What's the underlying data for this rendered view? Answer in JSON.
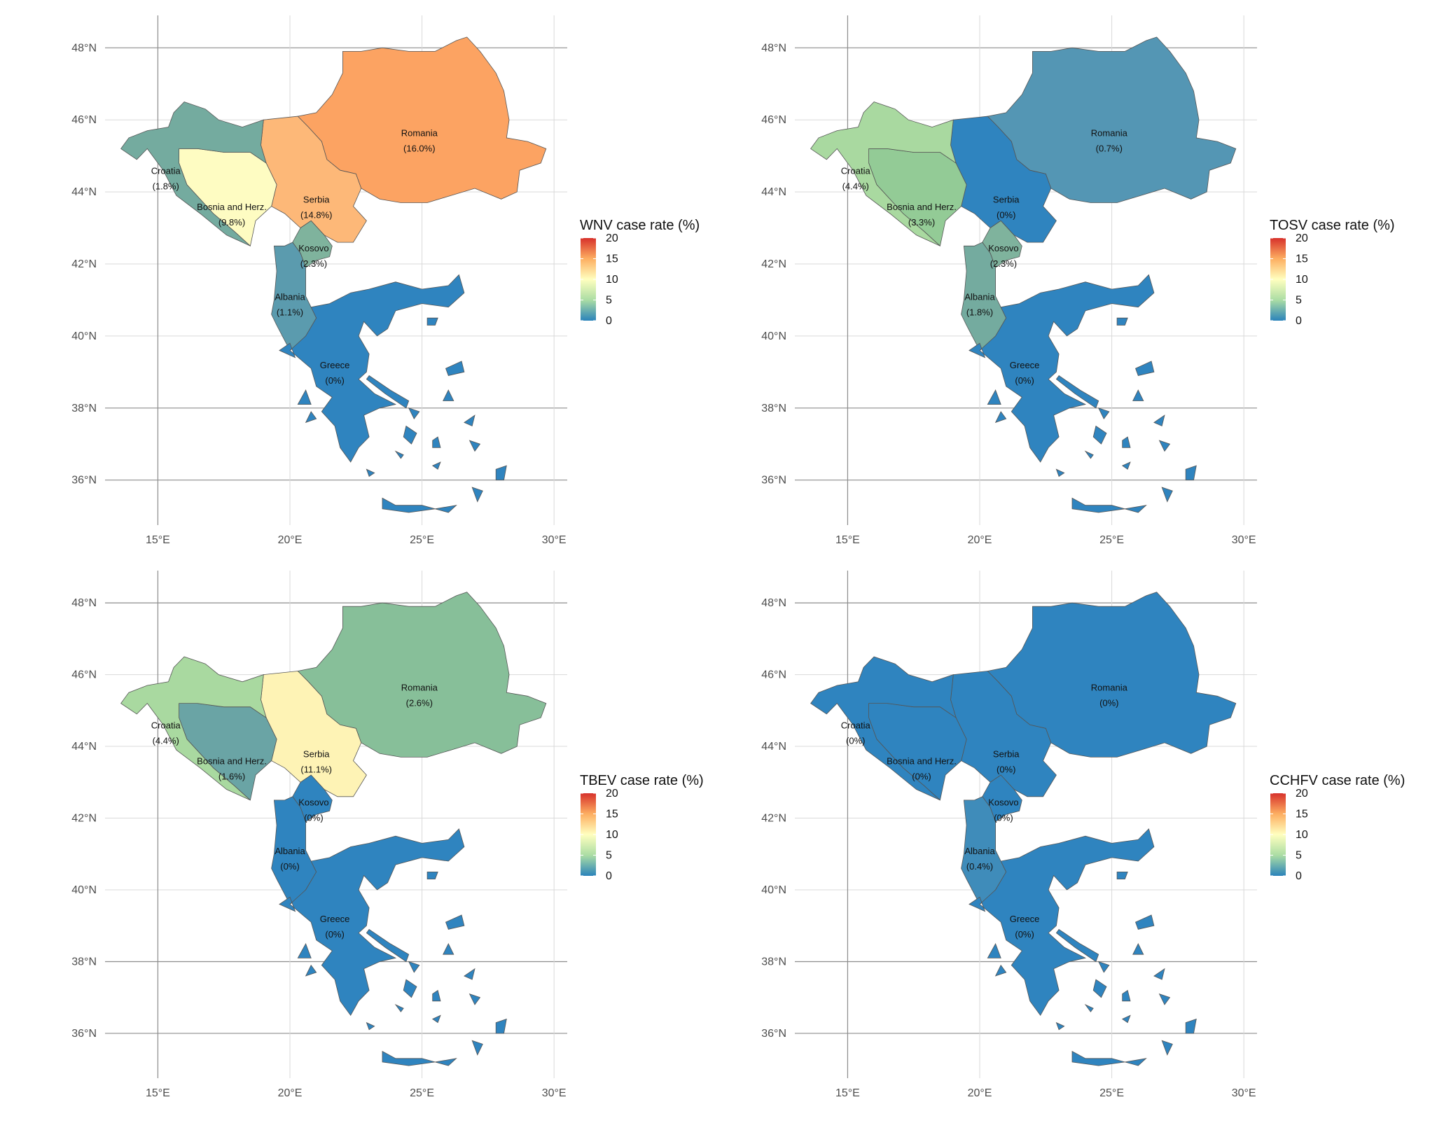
{
  "axes": {
    "lat_ticks": [
      "48°N",
      "46°N",
      "44°N",
      "42°N",
      "40°N",
      "38°N",
      "36°N"
    ],
    "lat_values": [
      48,
      46,
      44,
      42,
      40,
      38,
      36
    ],
    "lon_ticks": [
      "15°E",
      "20°E",
      "25°E",
      "30°E"
    ],
    "lon_values": [
      15,
      20,
      25,
      30
    ]
  },
  "legend": {
    "ticks": [
      "20",
      "15",
      "10",
      "5",
      "0"
    ],
    "scale_range": [
      0,
      20
    ],
    "colors": [
      "#d7312b",
      "#fdae61",
      "#ffffbf",
      "#abdda4",
      "#2b83ba"
    ]
  },
  "panels": [
    {
      "legend_title": "WNV case rate (%)",
      "countries": [
        {
          "name": "Romania",
          "value_label": "(16.0%)",
          "value": 16.0,
          "color": "#fca362"
        },
        {
          "name": "Serbia",
          "value_label": "(14.8%)",
          "value": 14.8,
          "color": "#fdb878"
        },
        {
          "name": "Bosnia and Herz.",
          "value_label": "(9.8%)",
          "value": 9.8,
          "color": "#fefcc2"
        },
        {
          "name": "Croatia",
          "value_label": "(1.8%)",
          "value": 1.8,
          "color": "#74ab9f"
        },
        {
          "name": "Kosovo",
          "value_label": "(2.3%)",
          "value": 2.3,
          "color": "#7fb39d"
        },
        {
          "name": "Albania",
          "value_label": "(1.1%)",
          "value": 1.1,
          "color": "#5b9bae"
        },
        {
          "name": "Greece",
          "value_label": "(0%)",
          "value": 0,
          "color": "#2f84bf"
        }
      ]
    },
    {
      "legend_title": "TOSV case rate (%)",
      "countries": [
        {
          "name": "Romania",
          "value_label": "(0.7%)",
          "value": 0.7,
          "color": "#5496b4"
        },
        {
          "name": "Serbia",
          "value_label": "(0%)",
          "value": 0,
          "color": "#2f84bf"
        },
        {
          "name": "Bosnia and Herz.",
          "value_label": "(3.3%)",
          "value": 3.3,
          "color": "#93cb96"
        },
        {
          "name": "Croatia",
          "value_label": "(4.4%)",
          "value": 4.4,
          "color": "#a9d9a0"
        },
        {
          "name": "Kosovo",
          "value_label": "(2.3%)",
          "value": 2.3,
          "color": "#7fb39d"
        },
        {
          "name": "Albania",
          "value_label": "(1.8%)",
          "value": 1.8,
          "color": "#74ab9f"
        },
        {
          "name": "Greece",
          "value_label": "(0%)",
          "value": 0,
          "color": "#2f84bf"
        }
      ]
    },
    {
      "legend_title": "TBEV case rate (%)",
      "countries": [
        {
          "name": "Romania",
          "value_label": "(2.6%)",
          "value": 2.6,
          "color": "#87bf99"
        },
        {
          "name": "Serbia",
          "value_label": "(11.1%)",
          "value": 11.1,
          "color": "#fef3b5"
        },
        {
          "name": "Bosnia and Herz.",
          "value_label": "(1.6%)",
          "value": 1.6,
          "color": "#6aa4a5"
        },
        {
          "name": "Croatia",
          "value_label": "(4.4%)",
          "value": 4.4,
          "color": "#a9d9a0"
        },
        {
          "name": "Kosovo",
          "value_label": "(0%)",
          "value": 0,
          "color": "#2f84bf"
        },
        {
          "name": "Albania",
          "value_label": "(0%)",
          "value": 0,
          "color": "#2f84bf"
        },
        {
          "name": "Greece",
          "value_label": "(0%)",
          "value": 0,
          "color": "#2f84bf"
        }
      ]
    },
    {
      "legend_title": "CCHFV case rate (%)",
      "countries": [
        {
          "name": "Romania",
          "value_label": "(0%)",
          "value": 0,
          "color": "#2f84bf"
        },
        {
          "name": "Serbia",
          "value_label": "(0%)",
          "value": 0,
          "color": "#2f84bf"
        },
        {
          "name": "Bosnia and Herz.",
          "value_label": "(0%)",
          "value": 0,
          "color": "#2f84bf"
        },
        {
          "name": "Croatia",
          "value_label": "(0%)",
          "value": 0,
          "color": "#2f84bf"
        },
        {
          "name": "Kosovo",
          "value_label": "(0%)",
          "value": 0,
          "color": "#2f84bf"
        },
        {
          "name": "Albania",
          "value_label": "(0.4%)",
          "value": 0.4,
          "color": "#3f8cba"
        },
        {
          "name": "Greece",
          "value_label": "(0%)",
          "value": 0,
          "color": "#2f84bf"
        }
      ]
    }
  ]
}
